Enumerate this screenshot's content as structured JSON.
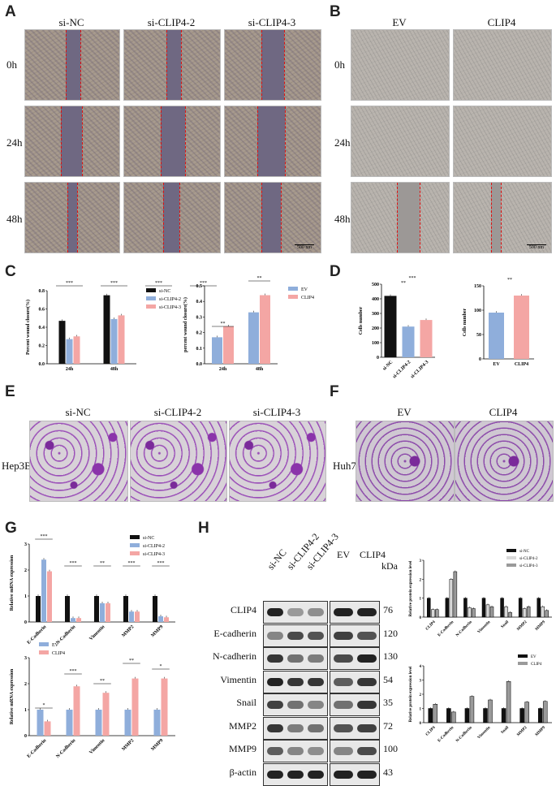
{
  "panels": {
    "A": {
      "label": "A",
      "columns": [
        "si-NC",
        "si-CLIP4-2",
        "si-CLIP4-3"
      ],
      "rows": [
        "0h",
        "24h",
        "48h"
      ],
      "scale": "500 nm"
    },
    "B": {
      "label": "B",
      "columns": [
        "EV",
        "CLIP4"
      ],
      "rows": [
        "0h",
        "24h",
        "48h"
      ],
      "scale": "500 nm"
    },
    "C": {
      "label": "C"
    },
    "D": {
      "label": "D"
    },
    "E": {
      "label": "E",
      "columns": [
        "si-NC",
        "si-CLIP4-2",
        "si-CLIP4-3"
      ],
      "row": "Hep3B"
    },
    "F": {
      "label": "F",
      "columns": [
        "EV",
        "CLIP4"
      ],
      "row": "Huh7"
    },
    "G": {
      "label": "G"
    },
    "H": {
      "label": "H",
      "lanes": [
        "si-NC",
        "si-CLIP4-2",
        "si-CLIP4-3",
        "EV",
        "CLIP4"
      ],
      "kda": "kDa",
      "proteins": [
        {
          "name": "CLIP4",
          "kda": "76"
        },
        {
          "name": "E-cadherin",
          "kda": "120"
        },
        {
          "name": "N-cadherin",
          "kda": "130"
        },
        {
          "name": "Vimentin",
          "kda": "54"
        },
        {
          "name": "Snail",
          "kda": "35"
        },
        {
          "name": "MMP2",
          "kda": "72"
        },
        {
          "name": "MMP9",
          "kda": "100"
        },
        {
          "name": "β-actin",
          "kda": "43"
        }
      ]
    }
  },
  "colors": {
    "siNC": "#111111",
    "si2": "#8faedb",
    "si3": "#f4a6a4",
    "ev": "#8faedb",
    "clip4": "#f4a6a4",
    "blotGray": "#9a9a9a"
  },
  "chart_data": [
    {
      "id": "C1",
      "type": "bar",
      "ylabel": "Percent wound closure(%)",
      "categories": [
        "24h",
        "48h"
      ],
      "series": [
        {
          "name": "si-NC",
          "values": [
            0.47,
            0.75
          ]
        },
        {
          "name": "si-CLIP4-2",
          "values": [
            0.27,
            0.49
          ]
        },
        {
          "name": "si-CLIP4-3",
          "values": [
            0.3,
            0.53
          ]
        }
      ],
      "ylim": [
        0,
        0.8
      ],
      "yticks": [
        "0.0",
        "0.2",
        "0.4",
        "0.6",
        "0.8"
      ],
      "sig": [
        "***",
        "***",
        "***",
        "***"
      ]
    },
    {
      "id": "C2",
      "type": "bar",
      "ylabel": "percent wound closure(%)",
      "categories": [
        "24h",
        "48h"
      ],
      "series": [
        {
          "name": "EV",
          "values": [
            0.17,
            0.33
          ]
        },
        {
          "name": "CLIP4",
          "values": [
            0.24,
            0.44
          ]
        }
      ],
      "ylim": [
        0,
        0.5
      ],
      "yticks": [
        "0.0",
        "0.1",
        "0.2",
        "0.3",
        "0.4",
        "0.5"
      ],
      "sig": [
        "**",
        "**"
      ]
    },
    {
      "id": "D1",
      "type": "bar",
      "ylabel": "Cells number",
      "categories": [
        "si-NC",
        "si-CLIP4-2",
        "si-CLIP4-3"
      ],
      "values": [
        420,
        210,
        255
      ],
      "ylim": [
        0,
        500
      ],
      "yticks": [
        "0",
        "100",
        "200",
        "300",
        "400",
        "500"
      ],
      "sig": [
        "**",
        "***"
      ]
    },
    {
      "id": "D2",
      "type": "bar",
      "ylabel": "Cells number",
      "categories": [
        "EV",
        "CLIP4"
      ],
      "values": [
        95,
        130
      ],
      "ylim": [
        0,
        150
      ],
      "yticks": [
        "0",
        "50",
        "100",
        "150"
      ],
      "sig": [
        "**"
      ]
    },
    {
      "id": "G1",
      "type": "bar",
      "ylabel": "Relative mRNA expression",
      "categories": [
        "E-Cadherin",
        "N-Cadherin",
        "Vimentin",
        "MMP2",
        "MMP9"
      ],
      "series": [
        {
          "name": "si-NC",
          "values": [
            1.0,
            1.0,
            1.0,
            1.0,
            1.0
          ]
        },
        {
          "name": "si-CLIP4-2",
          "values": [
            2.4,
            0.15,
            0.72,
            0.4,
            0.22
          ]
        },
        {
          "name": "si-CLIP4-3",
          "values": [
            1.95,
            0.15,
            0.72,
            0.4,
            0.18
          ]
        }
      ],
      "ylim": [
        0,
        3
      ],
      "yticks": [
        "0",
        "1",
        "2",
        "3"
      ],
      "sig": [
        "***",
        "***",
        "**",
        "***",
        "***"
      ]
    },
    {
      "id": "G2",
      "type": "bar",
      "ylabel": "Relative mRNA expression",
      "categories": [
        "E-Cadherin",
        "N-Cadherin",
        "Vimentin",
        "MMP2",
        "MMP9"
      ],
      "series": [
        {
          "name": "EV",
          "values": [
            1.0,
            1.0,
            1.0,
            1.0,
            1.0
          ]
        },
        {
          "name": "CLIP4",
          "values": [
            0.55,
            1.9,
            1.65,
            2.2,
            2.2
          ]
        }
      ],
      "ylim": [
        0,
        3
      ],
      "yticks": [
        "0",
        "1",
        "2",
        "3"
      ],
      "sig": [
        "*",
        "***",
        "**",
        "**",
        "*"
      ]
    },
    {
      "id": "H1",
      "type": "bar",
      "ylabel": "Relative protein expression level",
      "categories": [
        "CLIP4",
        "E-Cadherin",
        "N-Cadherin",
        "Vimentin",
        "Snail",
        "MMP2",
        "MMP9"
      ],
      "series": [
        {
          "name": "si-NC",
          "values": [
            1,
            1,
            1,
            1,
            1,
            1,
            1
          ]
        },
        {
          "name": "si-CLIP4-2",
          "values": [
            0.4,
            2.0,
            0.5,
            0.65,
            0.55,
            0.45,
            0.55
          ]
        },
        {
          "name": "si-CLIP4-3",
          "values": [
            0.4,
            2.4,
            0.45,
            0.55,
            0.25,
            0.55,
            0.35
          ]
        }
      ],
      "ylim": [
        0,
        3
      ],
      "yticks": [
        "0",
        "1",
        "2",
        "3"
      ]
    },
    {
      "id": "H2",
      "type": "bar",
      "ylabel": "Relative protein expression level",
      "categories": [
        "CLIP4",
        "E-Cadherin",
        "N-Cadherin",
        "Vimentin",
        "Snail",
        "MMP2",
        "MMP9"
      ],
      "series": [
        {
          "name": "EV",
          "values": [
            1,
            1,
            1,
            1,
            1,
            1,
            1
          ]
        },
        {
          "name": "CLIP4",
          "values": [
            1.3,
            0.75,
            1.85,
            1.6,
            2.9,
            1.45,
            1.5
          ]
        }
      ],
      "ylim": [
        0,
        4
      ],
      "yticks": [
        "0",
        "1",
        "2",
        "3",
        "4"
      ]
    }
  ]
}
